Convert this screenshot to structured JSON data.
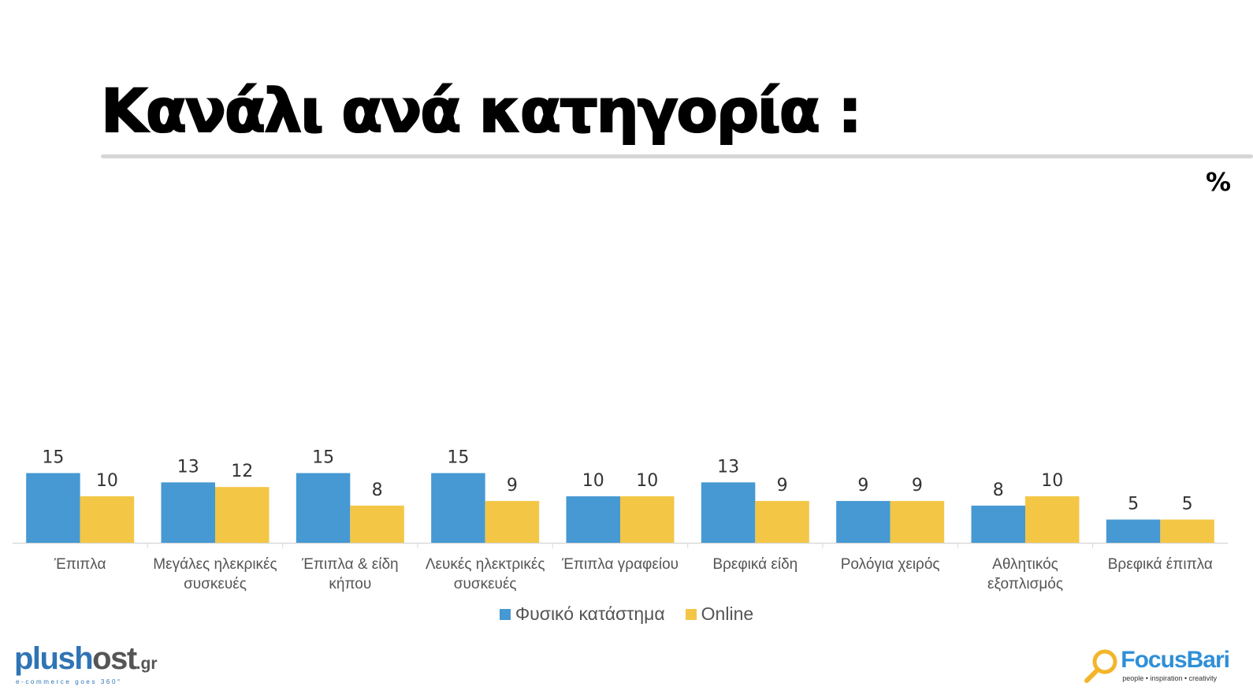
{
  "page": {
    "title": "Κανάλι ανά κατηγορία :",
    "unit": "%"
  },
  "colors": {
    "series_physical": "#4699d3",
    "series_online": "#f3c646",
    "axis": "#d9d9d9"
  },
  "chart_data": {
    "type": "bar",
    "title": "Κανάλι ανά κατηγορία :",
    "xlabel": "",
    "ylabel": "%",
    "ylim": [
      0,
      15
    ],
    "grid": false,
    "legend": "bottom-center",
    "categories": [
      [
        "Έπιπλα"
      ],
      [
        "Μεγάλες ηλεκρικές",
        "συσκευές"
      ],
      [
        "Έπιπλα & είδη",
        "κήπου"
      ],
      [
        "Λευκές ηλεκτρικές",
        "συσκευές"
      ],
      [
        "Έπιπλα γραφείου"
      ],
      [
        "Βρεφικά είδη"
      ],
      [
        "Ρολόγια χειρός"
      ],
      [
        "Αθλητικός",
        "εξοπλισμός"
      ],
      [
        "Βρεφικά έπιπλα"
      ]
    ],
    "series": [
      {
        "name": "Φυσικό κατάστημα",
        "color": "#4699d3",
        "values": [
          15,
          13,
          15,
          15,
          10,
          13,
          9,
          8,
          5
        ]
      },
      {
        "name": "Online",
        "color": "#f3c646",
        "values": [
          10,
          12,
          8,
          9,
          10,
          9,
          9,
          10,
          5
        ]
      }
    ]
  },
  "legend": {
    "items": [
      {
        "label": "Φυσικό κατάστημα",
        "icon": "blue-square"
      },
      {
        "label": "Online",
        "icon": "yellow-square"
      }
    ]
  },
  "logos": {
    "left": {
      "brand_main": "plush",
      "brand_host": "ost",
      "brand_tld": ".gr",
      "tagline": "e-commerce goes 360°"
    },
    "right": {
      "brand": "FocusBari",
      "tagline": "people • inspiration • creativity",
      "icon": "magnifier-icon"
    }
  }
}
